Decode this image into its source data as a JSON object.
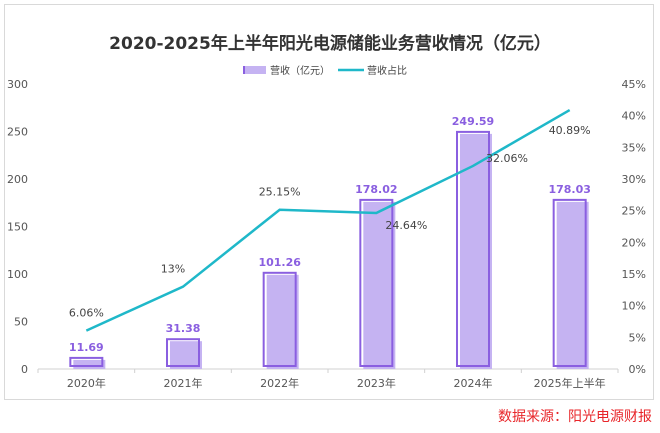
{
  "chart_data": {
    "type": "bar+line",
    "title": "2020-2025年上半年阳光电源储能业务营收情况（亿元）",
    "categories": [
      "2020年",
      "2021年",
      "2022年",
      "2023年",
      "2024年",
      "2025年上半年"
    ],
    "series": [
      {
        "name": "营收（亿元）",
        "type": "bar",
        "axis": "left",
        "values": [
          11.69,
          31.38,
          101.26,
          178.02,
          249.59,
          178.03
        ],
        "labels": [
          "11.69",
          "31.38",
          "101.26",
          "178.02",
          "249.59",
          "178.03"
        ],
        "color": "#c5b3f2",
        "outline": "#8a5fe0"
      },
      {
        "name": "营收占比",
        "type": "line",
        "axis": "right",
        "values": [
          6.06,
          13,
          25.15,
          24.64,
          32.06,
          40.89
        ],
        "labels": [
          "6.06%",
          "13%",
          "25.15%",
          "24.64%",
          "32.06%",
          "40.89%"
        ],
        "color": "#1fb8c9"
      }
    ],
    "left_axis": {
      "ylim": [
        0,
        300
      ],
      "ticks": [
        "0",
        "50",
        "100",
        "150",
        "200",
        "250",
        "300"
      ]
    },
    "right_axis": {
      "ylim": [
        0,
        45
      ],
      "ticks": [
        "0%",
        "5%",
        "10%",
        "15%",
        "20%",
        "25%",
        "30%",
        "35%",
        "40%",
        "45%"
      ]
    },
    "legend": "top",
    "grid": false
  },
  "source": "数据来源：阳光电源财报"
}
